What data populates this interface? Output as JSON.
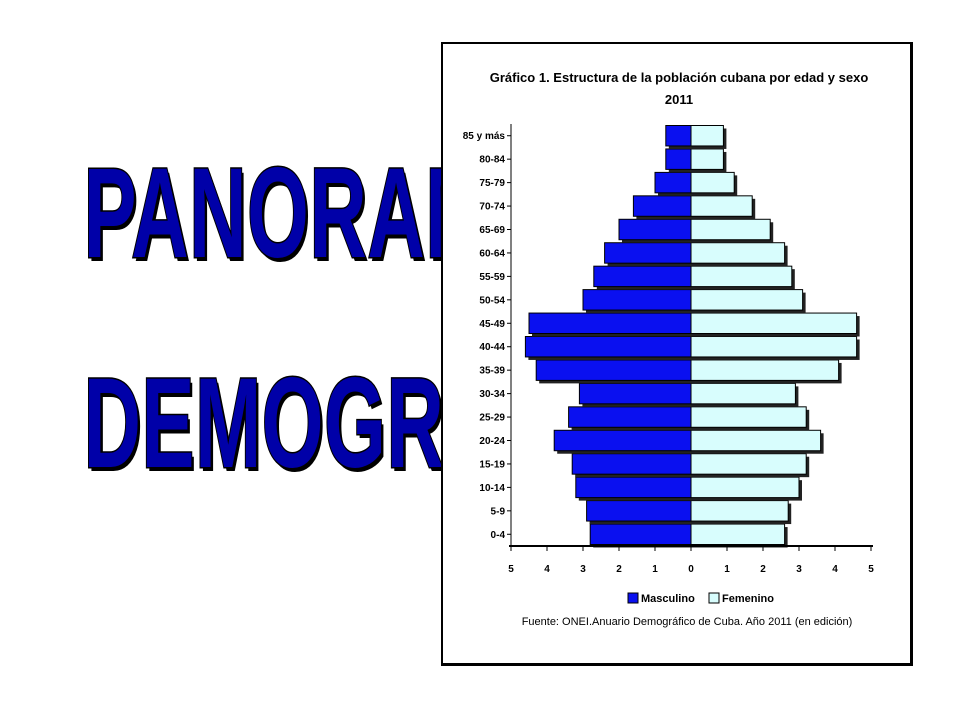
{
  "slide": {
    "heading_line1": "PANORAMA",
    "heading_line2": "DEMOGRÁFICO"
  },
  "chart_data": {
    "type": "bar",
    "title": "Gráfico 1. Estructura de la población cubana por edad y sexo",
    "subtitle": "2011",
    "categories": [
      "0-4",
      "5-9",
      "10-14",
      "15-19",
      "20-24",
      "25-29",
      "30-34",
      "35-39",
      "40-44",
      "45-49",
      "50-54",
      "55-59",
      "60-64",
      "65-69",
      "70-74",
      "75-79",
      "80-84",
      "85 y más"
    ],
    "series": [
      {
        "name": "Masculino",
        "color": "#0a10f0",
        "values": [
          2.8,
          2.9,
          3.2,
          3.3,
          3.8,
          3.4,
          3.1,
          4.3,
          4.6,
          4.5,
          3.0,
          2.7,
          2.4,
          2.0,
          1.6,
          1.0,
          0.7,
          0.7
        ]
      },
      {
        "name": "Femenino",
        "color": "#d8fdfd",
        "values": [
          2.6,
          2.7,
          3.0,
          3.2,
          3.6,
          3.2,
          2.9,
          4.1,
          4.6,
          4.6,
          3.1,
          2.8,
          2.6,
          2.2,
          1.7,
          1.2,
          0.9,
          0.9
        ]
      }
    ],
    "xticks": [
      "5",
      "4",
      "3",
      "2",
      "1",
      "0",
      "1",
      "2",
      "3",
      "4",
      "5"
    ],
    "xlim": [
      -5,
      5
    ],
    "source": "Fuente: ONEI.Anuario Demográfico de Cuba. Año 2011 (en edición)",
    "legend_position": "bottom-center",
    "grid": false
  }
}
